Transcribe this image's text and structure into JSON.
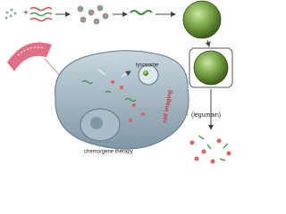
{
  "labels": {
    "operator": "+",
    "lysosome": "lysosome",
    "enzyme": "(legumain)",
    "imaging": "cell imaging",
    "therapy": "chemo/gene therapy"
  }
}
